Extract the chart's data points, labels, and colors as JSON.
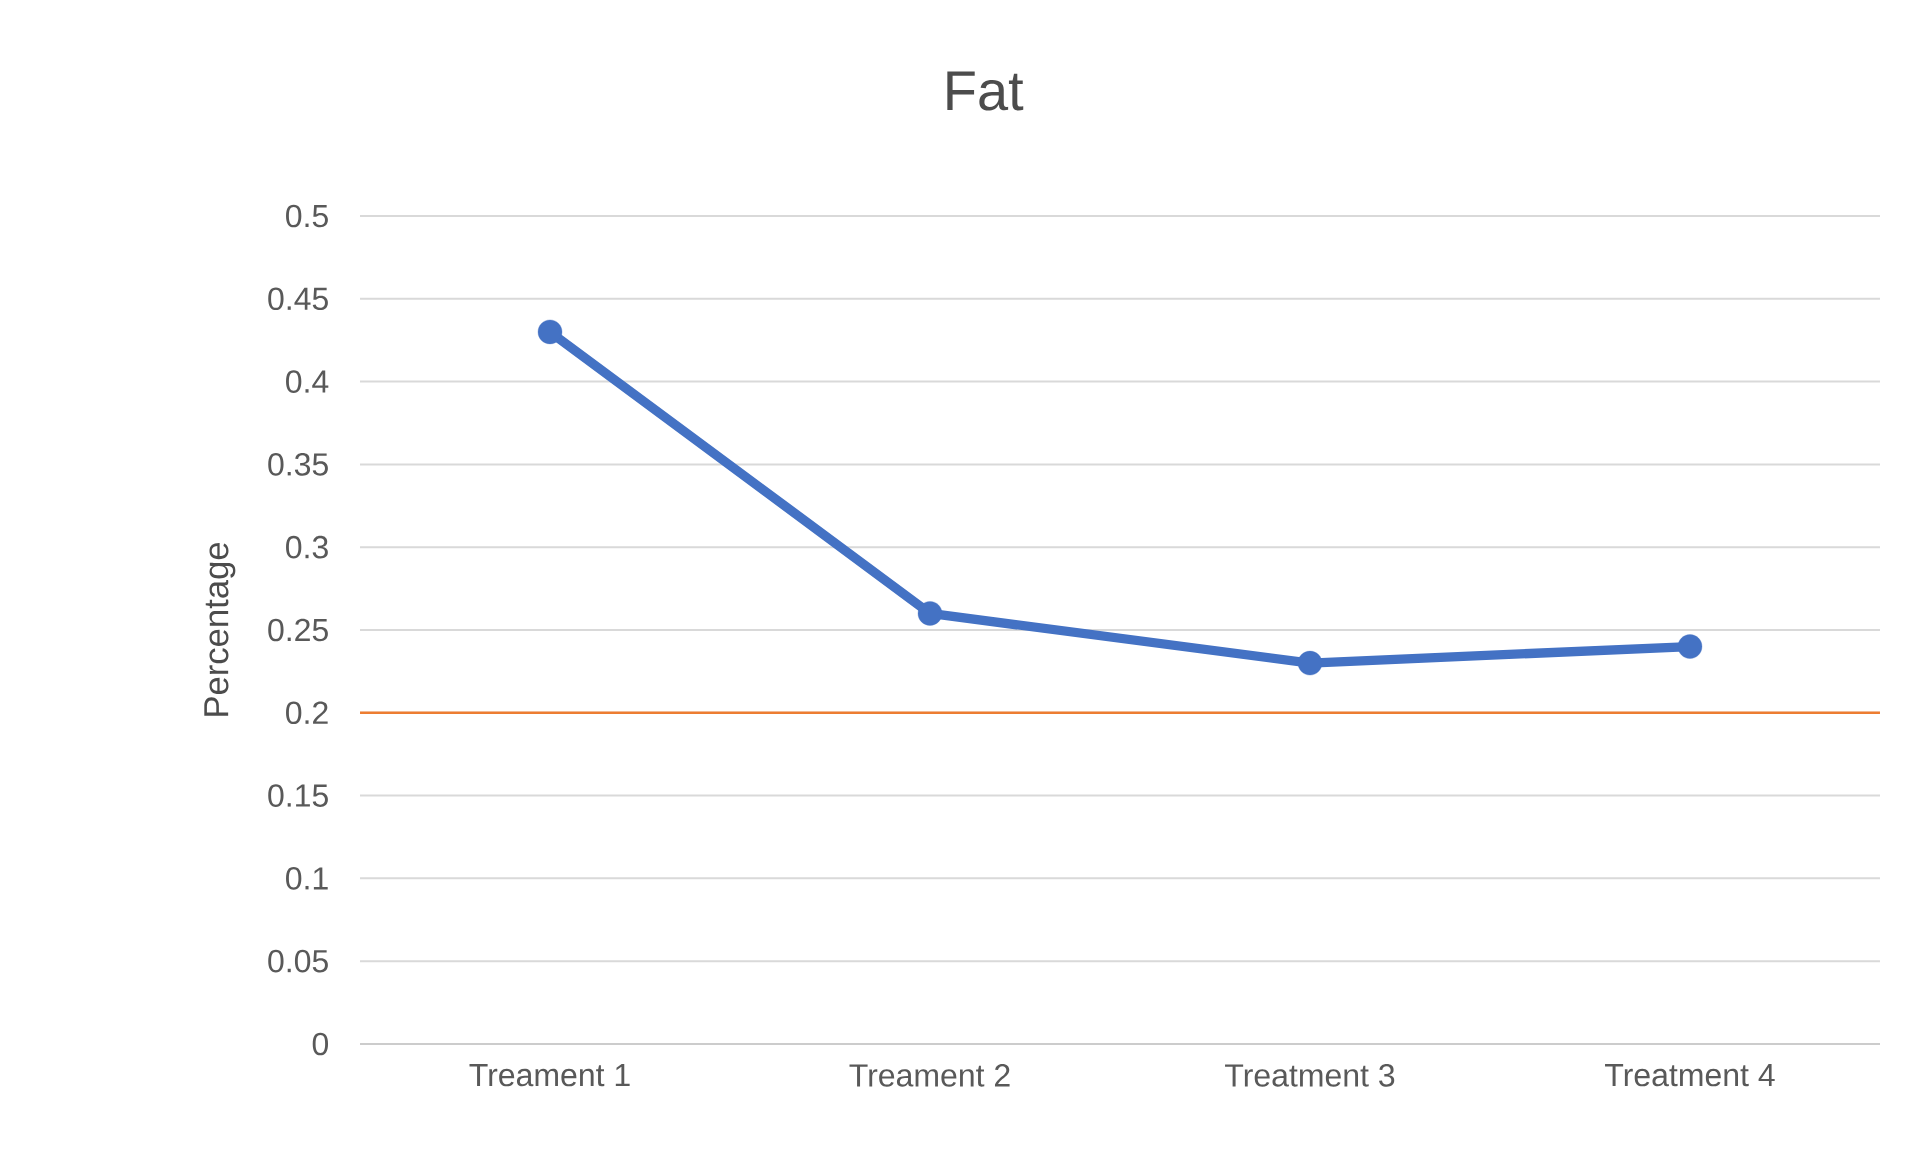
{
  "chart_data": {
    "type": "line",
    "title": "Fat",
    "ylabel": "Percentage",
    "categories": [
      "Treament 1",
      "Treament 2",
      "Treatment 3",
      "Treatment 4"
    ],
    "values": [
      0.43,
      0.26,
      0.23,
      0.24
    ],
    "color": "#4472c4",
    "marker": "circle",
    "ylim": [
      0,
      0.5
    ],
    "yticks": [
      0,
      0.05,
      0.1,
      0.15,
      0.2,
      0.25,
      0.3,
      0.35,
      0.4,
      0.45,
      0.5
    ],
    "grid": "y",
    "ref_lines": [
      {
        "axis": "y",
        "value": 0.2,
        "color": "#ed7d31"
      }
    ]
  }
}
